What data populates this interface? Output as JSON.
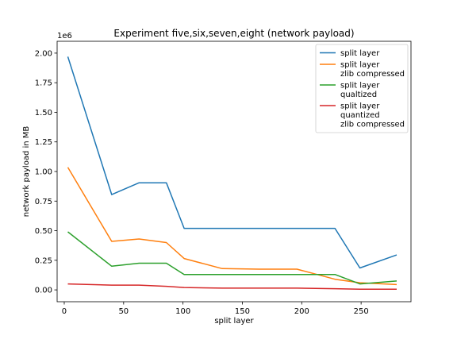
{
  "chart_data": {
    "type": "line",
    "title": "Experiment five,six,seven,eight (network payload)",
    "xlabel": "split layer",
    "ylabel": "network payload in MB",
    "y_scale_label": "1e6",
    "xlim": [
      -6,
      292
    ],
    "ylim": [
      -0.1,
      2.1
    ],
    "y_multiplier": 1000000,
    "x_ticks": [
      0,
      50,
      100,
      150,
      200,
      250
    ],
    "x_tick_labels": [
      "0",
      "50",
      "100",
      "150",
      "200",
      "250"
    ],
    "y_ticks": [
      0,
      0.25,
      0.5,
      0.75,
      1.0,
      1.25,
      1.5,
      1.75,
      2.0
    ],
    "y_tick_labels": [
      "0.00",
      "0.25",
      "0.50",
      "0.75",
      "1.00",
      "1.25",
      "1.50",
      "1.75",
      "2.00"
    ],
    "grid": false,
    "legend_position": "top-right",
    "series": [
      {
        "name": "split layer",
        "name_lines": [
          "split layer"
        ],
        "color": "#1f77b4",
        "x": [
          3,
          40,
          63,
          86,
          101,
          133,
          164,
          196,
          228,
          249,
          280
        ],
        "y": [
          1.97,
          0.805,
          0.905,
          0.905,
          0.52,
          0.52,
          0.52,
          0.52,
          0.52,
          0.185,
          0.295
        ]
      },
      {
        "name": "split layer\nzlib compressed",
        "name_lines": [
          "split layer",
          "zlib compressed"
        ],
        "color": "#ff7f0e",
        "x": [
          3,
          40,
          63,
          86,
          101,
          133,
          164,
          196,
          228,
          249,
          280
        ],
        "y": [
          1.035,
          0.41,
          0.43,
          0.4,
          0.265,
          0.18,
          0.175,
          0.175,
          0.09,
          0.06,
          0.045
        ]
      },
      {
        "name": "split layer\nqualtized",
        "name_lines": [
          "split layer",
          "qualtized"
        ],
        "color": "#2ca02c",
        "x": [
          3,
          40,
          63,
          86,
          101,
          133,
          164,
          196,
          228,
          249,
          280
        ],
        "y": [
          0.49,
          0.2,
          0.225,
          0.225,
          0.13,
          0.13,
          0.13,
          0.13,
          0.13,
          0.05,
          0.075
        ]
      },
      {
        "name": "split layer\nquantized\nzlib compressed",
        "name_lines": [
          "split layer",
          "quantized",
          "zlib compressed"
        ],
        "color": "#d62728",
        "x": [
          3,
          40,
          63,
          86,
          101,
          133,
          164,
          196,
          228,
          249,
          280
        ],
        "y": [
          0.05,
          0.04,
          0.04,
          0.03,
          0.02,
          0.015,
          0.015,
          0.015,
          0.01,
          0.005,
          0.005
        ]
      }
    ]
  }
}
